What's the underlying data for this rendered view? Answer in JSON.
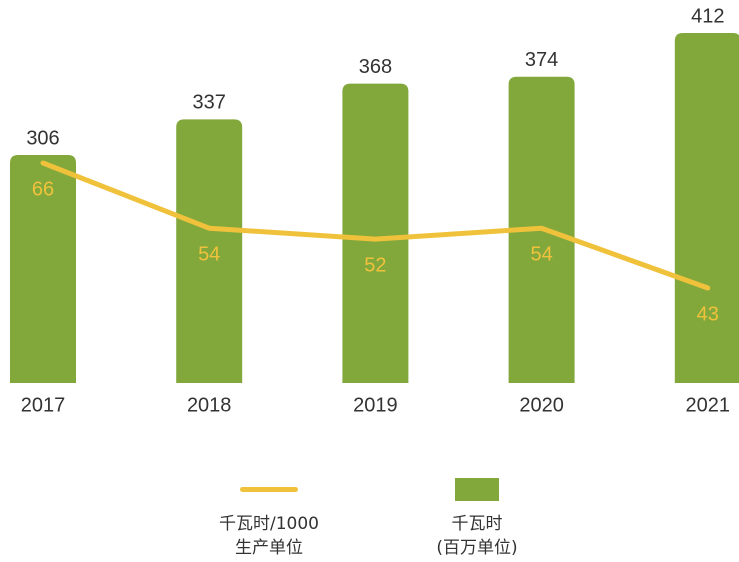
{
  "chart_data": {
    "type": "bar",
    "categories": [
      "2017",
      "2018",
      "2019",
      "2020",
      "2021"
    ],
    "series": [
      {
        "name": "千瓦时/1000\n生产单位",
        "type": "line",
        "axis": "y2",
        "color": "#f0c23b",
        "values": [
          66,
          54,
          52,
          54,
          43
        ]
      },
      {
        "name": "千瓦时\n(百万单位)",
        "type": "bar",
        "color": "#82a83c",
        "values": [
          306,
          337,
          368,
          374,
          412
        ]
      }
    ]
  }
}
